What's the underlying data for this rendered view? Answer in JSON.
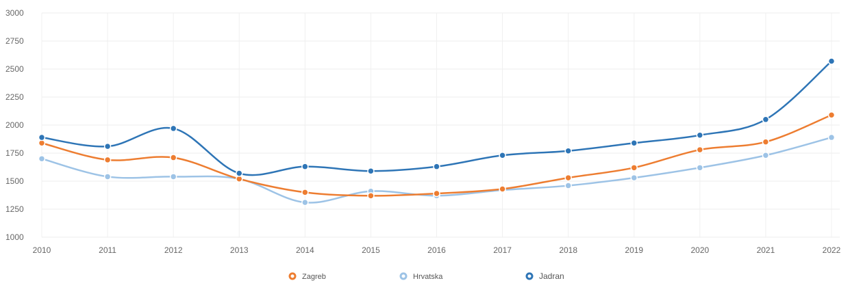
{
  "chart_data": {
    "type": "line",
    "title": "",
    "xlabel": "",
    "ylabel": "",
    "x": [
      "2010",
      "2011",
      "2012",
      "2013",
      "2014",
      "2015",
      "2016",
      "2017",
      "2018",
      "2019",
      "2020",
      "2021",
      "2022"
    ],
    "ylim": [
      1000,
      3000
    ],
    "yticks": [
      1000,
      1250,
      1500,
      1750,
      2000,
      2250,
      2500,
      2750,
      3000
    ],
    "grid": true,
    "legend_position": "bottom",
    "series": [
      {
        "name": "Zagreb",
        "color": "#ED7D31",
        "values": [
          1840,
          1690,
          1710,
          1520,
          1400,
          1370,
          1390,
          1430,
          1530,
          1620,
          1780,
          1850,
          2090
        ]
      },
      {
        "name": "Hrvatska",
        "color": "#9DC3E6",
        "values": [
          1700,
          1540,
          1540,
          1520,
          1310,
          1410,
          1370,
          1420,
          1460,
          1530,
          1620,
          1730,
          1890
        ]
      },
      {
        "name": "Jadran",
        "color": "#2E75B6",
        "values": [
          1890,
          1810,
          1970,
          1570,
          1630,
          1590,
          1630,
          1730,
          1770,
          1840,
          1910,
          2050,
          2570
        ]
      }
    ]
  }
}
